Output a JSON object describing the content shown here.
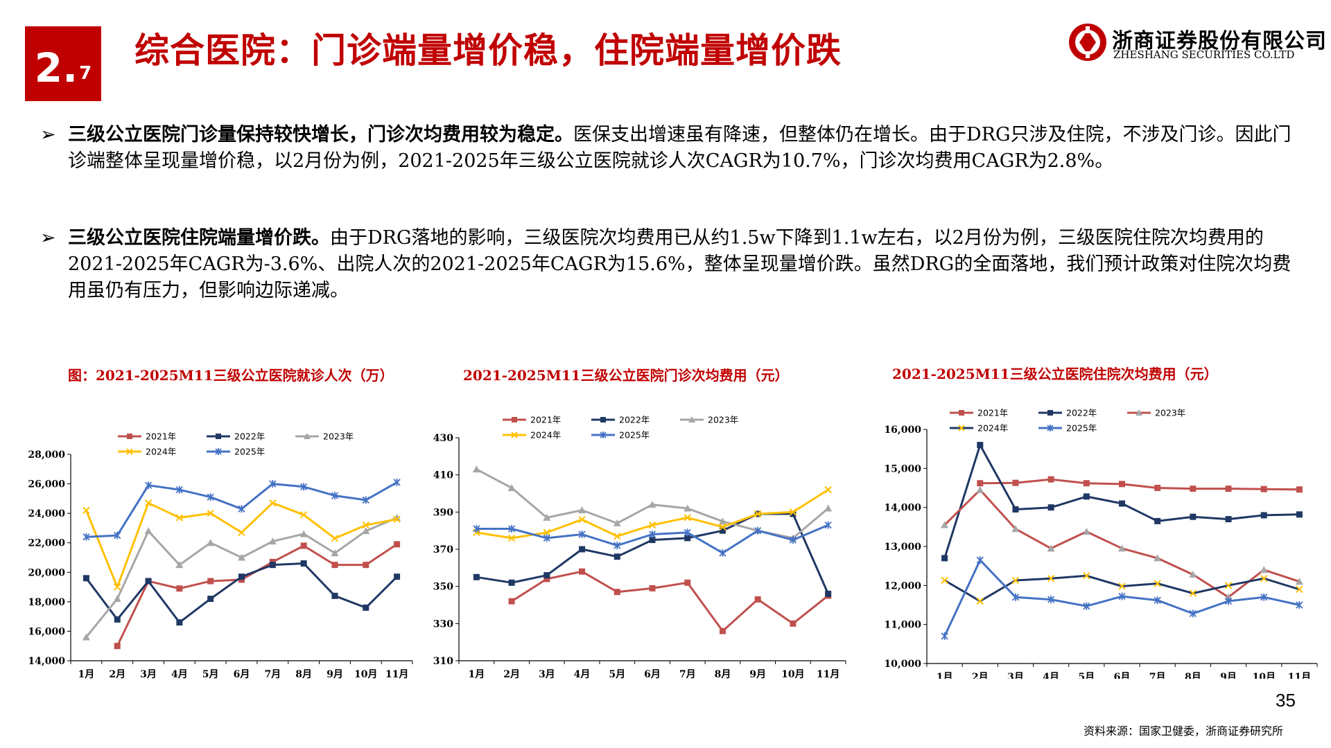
{
  "header": {
    "section_major": "2.",
    "section_minor": "7",
    "title": "综合医院：门诊端量增价稳，住院端量增价跌",
    "logo_cn": "浙商证券股份有限公司",
    "logo_en": "ZHESHANG SECURITIES CO.LTD",
    "brand_color": "#c00000"
  },
  "bullets": [
    {
      "arrow": "➢",
      "bold": "三级公立医院门诊量保持较快增长，门诊次均费用较为稳定。",
      "text": "医保支出增速虽有降速，但整体仍在增长。由于DRG只涉及住院，不涉及门诊。因此门诊端整体呈现量增价稳，以2月份为例，2021-2025年三级公立医院就诊人次CAGR为10.7%，门诊次均费用CAGR为2.8%。"
    },
    {
      "arrow": "➢",
      "bold": "三级公立医院住院端量增价跌。",
      "text": "由于DRG落地的影响，三级医院次均费用已从约1.5w下降到1.1w左右，以2月份为例，三级医院住院次均费用的2021-2025年CAGR为-3.6%、出院人次的2021-2025年CAGR为15.6%，整体呈现量增价跌。虽然DRG的全面落地，我们预计政策对住院次均费用虽仍有压力，但影响边际递减。"
    }
  ],
  "chart_data": [
    {
      "type": "line",
      "title": "图：2021-2025M11三级公立医院就诊人次（万）",
      "categories": [
        "1月",
        "2月",
        "3月",
        "4月",
        "5月",
        "6月",
        "7月",
        "8月",
        "9月",
        "10月",
        "11月"
      ],
      "yticks": [
        "14,000",
        "16,000",
        "18,000",
        "20,000",
        "22,000",
        "24,000",
        "26,000",
        "28,000"
      ],
      "ylim": [
        14000,
        28000
      ],
      "legend_rows": [
        [
          "2021年",
          "2022年",
          "2023年"
        ],
        [
          "2024年",
          "2025年"
        ]
      ],
      "series": [
        {
          "name": "2021年",
          "color": "#c0504d",
          "marker": "square",
          "values": [
            null,
            15000,
            19400,
            18900,
            19400,
            19500,
            20700,
            21800,
            20500,
            20500,
            21900
          ]
        },
        {
          "name": "2022年",
          "color": "#1f3864",
          "marker": "square",
          "values": [
            19600,
            16800,
            19400,
            16600,
            18200,
            19700,
            20500,
            20600,
            18400,
            17600,
            19700
          ]
        },
        {
          "name": "2023年",
          "color": "#a6a6a6",
          "marker": "triangle",
          "values": [
            15600,
            18200,
            22800,
            20500,
            22000,
            21000,
            22100,
            22600,
            21300,
            22800,
            23700
          ]
        },
        {
          "name": "2024年",
          "color": "#ffc000",
          "marker": "x",
          "values": [
            24200,
            19000,
            24700,
            23700,
            24000,
            22700,
            24700,
            23900,
            22300,
            23200,
            23600
          ]
        },
        {
          "name": "2025年",
          "color": "#4472c4",
          "marker": "star",
          "values": [
            22400,
            22500,
            25900,
            25600,
            25100,
            24300,
            26000,
            25800,
            25200,
            24900,
            26100
          ]
        }
      ]
    },
    {
      "type": "line",
      "title": "2021-2025M11三级公立医院门诊次均费用（元）",
      "categories": [
        "1月",
        "2月",
        "3月",
        "4月",
        "5月",
        "6月",
        "7月",
        "8月",
        "9月",
        "10月",
        "11月"
      ],
      "yticks": [
        "310",
        "330",
        "350",
        "370",
        "390",
        "410",
        "430"
      ],
      "ylim": [
        310,
        430
      ],
      "legend_rows": [
        [
          "2021年",
          "2022年",
          "2023年"
        ],
        [
          "2024年",
          "2025年"
        ]
      ],
      "series": [
        {
          "name": "2021年",
          "color": "#c0504d",
          "marker": "square",
          "values": [
            null,
            342,
            354,
            358,
            347,
            349,
            352,
            326,
            343,
            330,
            345
          ]
        },
        {
          "name": "2022年",
          "color": "#1f3864",
          "marker": "square",
          "values": [
            355,
            352,
            356,
            370,
            366,
            375,
            376,
            380,
            389,
            389,
            346
          ]
        },
        {
          "name": "2023年",
          "color": "#a6a6a6",
          "marker": "triangle",
          "values": [
            413,
            403,
            387,
            391,
            384,
            394,
            392,
            385,
            380,
            376,
            392
          ]
        },
        {
          "name": "2024年",
          "color": "#ffc000",
          "marker": "x",
          "values": [
            379,
            376,
            379,
            386,
            377,
            383,
            387,
            382,
            389,
            390,
            402
          ]
        },
        {
          "name": "2025年",
          "color": "#4472c4",
          "marker": "star",
          "values": [
            381,
            381,
            376,
            378,
            372,
            378,
            379,
            368,
            380,
            375,
            383
          ]
        }
      ]
    },
    {
      "type": "line",
      "title": "2021-2025M11三级公立医院住院次均费用（元）",
      "categories": [
        "1月",
        "2月",
        "3月",
        "4月",
        "5月",
        "6月",
        "7月",
        "8月",
        "9月",
        "10月",
        "11月"
      ],
      "yticks": [
        "10,000",
        "11,000",
        "12,000",
        "13,000",
        "14,000",
        "15,000",
        "16,000"
      ],
      "ylim": [
        10000,
        16000
      ],
      "legend_rows": [
        [
          "2021年",
          "2022年",
          "2023年"
        ],
        [
          "2024年",
          "2025年"
        ]
      ],
      "series": [
        {
          "name": "2021年",
          "color": "#c0504d",
          "marker": "square",
          "values": [
            null,
            14620,
            14630,
            14720,
            14620,
            14600,
            14500,
            14480,
            14480,
            14470,
            14460
          ]
        },
        {
          "name": "2022年",
          "color": "#1f3864",
          "marker": "square",
          "values": [
            12700,
            15600,
            13950,
            14000,
            14280,
            14100,
            13650,
            13760,
            13700,
            13800,
            13820
          ]
        },
        {
          "name": "2023年",
          "color": "#c0504d",
          "marker": "triangle",
          "marker_color": "#a6a6a6",
          "values": [
            13550,
            14450,
            13450,
            12950,
            13380,
            12950,
            12700,
            12280,
            11700,
            12400,
            12100
          ]
        },
        {
          "name": "2024年",
          "color": "#1f3864",
          "marker": "x",
          "marker_color": "#ffc000",
          "values": [
            12130,
            11600,
            12130,
            12180,
            12250,
            11980,
            12050,
            11800,
            12000,
            12180,
            11900
          ]
        },
        {
          "name": "2025年",
          "color": "#4472c4",
          "marker": "star",
          "values": [
            10700,
            12650,
            11700,
            11640,
            11470,
            11720,
            11620,
            11280,
            11600,
            11700,
            11500
          ]
        }
      ]
    }
  ],
  "footer": {
    "page_number": "35",
    "source": "资料来源：国家卫健委，浙商证券研究所"
  }
}
